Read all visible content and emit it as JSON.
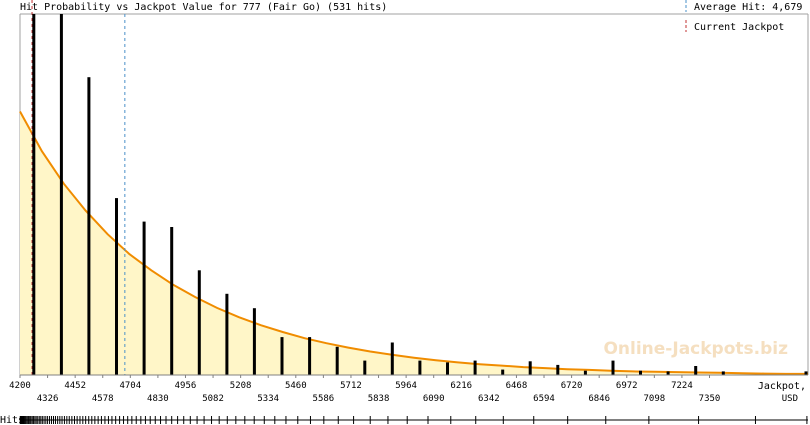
{
  "chart_data": {
    "type": "bar",
    "title": "Hit Probability vs Jackpot Value for 777 (Fair Go) (531 hits)",
    "legend": {
      "average_hit_label": "Average Hit: 4,679",
      "current_jackpot_label": "Current Jackpot",
      "position": "top-right"
    },
    "xlabel": "Jackpot,",
    "xunit": "USD",
    "xlim": [
      4200,
      7800
    ],
    "ylim": [
      0,
      1
    ],
    "ticks_row1": [
      4200,
      4452,
      4704,
      4956,
      5208,
      5460,
      5712,
      5964,
      6216,
      6468,
      6720,
      6972,
      7224
    ],
    "ticks_row2": [
      4326,
      4578,
      4830,
      5082,
      5334,
      5586,
      5838,
      6090,
      6342,
      6594,
      6846,
      7098,
      7350
    ],
    "tick_labels_row1": [
      "4200",
      "4452",
      "4704",
      "4956",
      "5208",
      "5460",
      "5712",
      "5964",
      "6216",
      "6468",
      "6720",
      "6972",
      "7224"
    ],
    "tick_labels_row2": [
      "4326",
      "4578",
      "4830",
      "5082",
      "5334",
      "5586",
      "5838",
      "6090",
      "6342",
      "6594",
      "6846",
      "7098",
      "7350"
    ],
    "average_hit": 4679,
    "current_jackpot": 4255,
    "bars": {
      "x": [
        4263,
        4389,
        4515,
        4641,
        4767,
        4893,
        5019,
        5145,
        5271,
        5397,
        5523,
        5649,
        5775,
        5901,
        6027,
        6153,
        6279,
        6405,
        6531,
        6657,
        6783,
        6909,
        7035,
        7161,
        7287,
        7413,
        7539,
        7665,
        7791
      ],
      "values": [
        1.0,
        1.0,
        0.825,
        0.49,
        0.425,
        0.41,
        0.29,
        0.225,
        0.185,
        0.105,
        0.105,
        0.078,
        0.04,
        0.09,
        0.04,
        0.035,
        0.04,
        0.015,
        0.038,
        0.028,
        0.012,
        0.04,
        0.012,
        0.01,
        0.025,
        0.01,
        0.0,
        0.0,
        0.01
      ]
    },
    "curve": {
      "x": [
        4200,
        4300,
        4400,
        4500,
        4600,
        4700,
        4800,
        4900,
        5000,
        5100,
        5200,
        5300,
        5400,
        5500,
        5600,
        5700,
        5800,
        5900,
        6000,
        6100,
        6200,
        6300,
        6400,
        6500,
        6600,
        6700,
        6800,
        6900,
        7000,
        7100,
        7200,
        7300,
        7400,
        7500,
        7600,
        7700,
        7800
      ],
      "values": [
        0.73,
        0.62,
        0.53,
        0.455,
        0.39,
        0.335,
        0.29,
        0.25,
        0.216,
        0.186,
        0.16,
        0.138,
        0.119,
        0.102,
        0.088,
        0.076,
        0.065,
        0.056,
        0.048,
        0.041,
        0.035,
        0.03,
        0.026,
        0.022,
        0.019,
        0.016,
        0.014,
        0.012,
        0.01,
        0.009,
        0.008,
        0.007,
        0.006,
        0.005,
        0.004,
        0.003,
        0.003
      ]
    },
    "hits_label": "Hits",
    "hit_positions": [
      4201,
      4203,
      4206,
      4209,
      4212,
      4215,
      4218,
      4222,
      4226,
      4231,
      4236,
      4240,
      4245,
      4250,
      4256,
      4262,
      4268,
      4274,
      4281,
      4288,
      4295,
      4302,
      4310,
      4318,
      4326,
      4335,
      4344,
      4353,
      4362,
      4372,
      4382,
      4392,
      4403,
      4414,
      4425,
      4437,
      4449,
      4461,
      4474,
      4487,
      4500,
      4514,
      4528,
      4542,
      4557,
      4572,
      4588,
      4604,
      4620,
      4637,
      4655,
      4673,
      4692,
      4711,
      4731,
      4752,
      4773,
      4795,
      4818,
      4842,
      4867,
      4893,
      4920,
      4948,
      4978,
      5009,
      5041,
      5075,
      5110,
      5147,
      5186,
      5227,
      5270,
      5316,
      5364,
      5415,
      5469,
      5527,
      5588,
      5654,
      5724,
      5800,
      5881,
      5969,
      6064,
      6168,
      6282,
      6408,
      6547,
      6702,
      6876,
      7073,
      7300,
      7560,
      7795
    ]
  },
  "watermark": "Online-Jackpots.biz",
  "colors": {
    "bar": "#000000",
    "curve": "#f08c00",
    "area_fill": "#fff6c8",
    "average_line": "#4a90c8",
    "current_line": "#c03030",
    "axis": "#808080"
  }
}
